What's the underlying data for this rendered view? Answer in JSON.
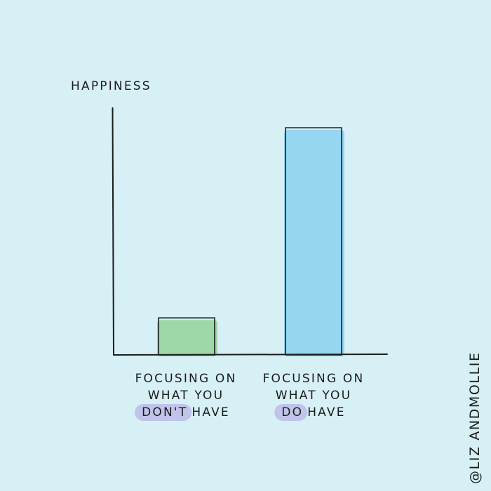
{
  "colors": {
    "background": "#d6f0f5",
    "highlight": "#c0c3ea",
    "ink": "#1c1c1c"
  },
  "chart_data": {
    "type": "bar",
    "ylabel": "HAPPINESS",
    "xlabel": "",
    "ylim": [
      0,
      100
    ],
    "categories": [
      {
        "lines": [
          {
            "text": "FOCUSING ON"
          },
          {
            "text": "WHAT YOU"
          },
          {
            "highlight": "DON'T",
            "rest": "HAVE"
          }
        ]
      },
      {
        "lines": [
          {
            "text": "FOCUSING ON"
          },
          {
            "text": "WHAT YOU"
          },
          {
            "highlight": "DO",
            "rest": "HAVE"
          }
        ]
      }
    ],
    "values": [
      15,
      92
    ],
    "colors": [
      "#98d5a0",
      "#8ed3f0"
    ],
    "grid": false,
    "legend": "none"
  },
  "credit": "@LIZ ANDMOLLIE"
}
